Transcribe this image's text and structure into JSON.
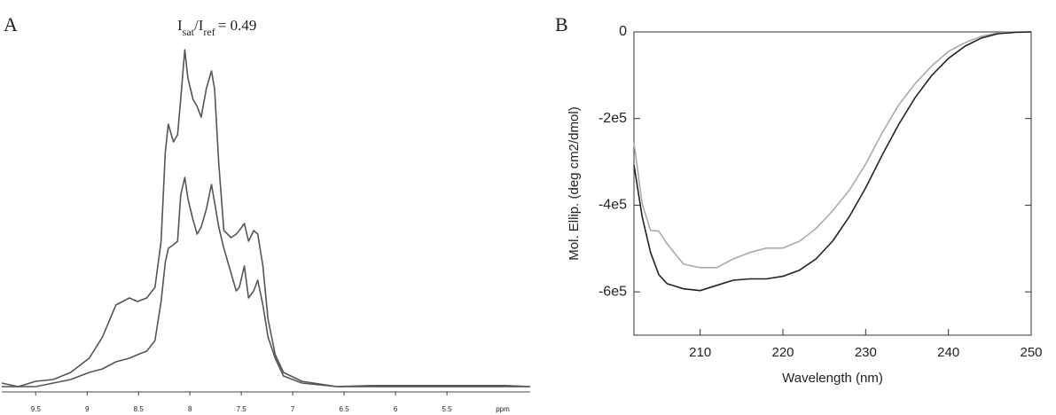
{
  "chart_data": [
    {
      "type": "line",
      "panel": "A",
      "annotation": [
        {
          "text": "I"
        },
        {
          "sub": "sat"
        },
        {
          "text": "/I"
        },
        {
          "sub": "ref"
        },
        {
          "text": "= 0.49"
        }
      ],
      "x_label": "ppm",
      "x": [
        9.83,
        9.67,
        9.5,
        9.33,
        9.16,
        8.98,
        8.85,
        8.72,
        8.59,
        8.51,
        8.42,
        8.34,
        8.28,
        8.24,
        8.21,
        8.16,
        8.12,
        8.09,
        8.05,
        8.02,
        7.97,
        7.93,
        7.89,
        7.84,
        7.79,
        7.76,
        7.72,
        7.67,
        7.6,
        7.55,
        7.52,
        7.47,
        7.43,
        7.38,
        7.34,
        7.29,
        7.24,
        7.17,
        7.09,
        6.91,
        6.57,
        6.22,
        5.53,
        4.93,
        4.69
      ],
      "series": [
        {
          "color": "#555555",
          "values": [
            2,
            1,
            2.5,
            3,
            5,
            9,
            15,
            24,
            26,
            25,
            26,
            29,
            42,
            67,
            75,
            70,
            72,
            82,
            96,
            88,
            82,
            80,
            77,
            85,
            90,
            85,
            64,
            45,
            43,
            44,
            45,
            47,
            42,
            45,
            44,
            35,
            20,
            10,
            5,
            2.5,
            1,
            1.3,
            1.3,
            1.3,
            1
          ]
        },
        {
          "color": "#555555",
          "values": [
            1,
            1,
            1,
            2,
            3,
            5,
            6,
            8,
            9,
            10,
            11,
            14,
            25,
            36,
            40,
            41,
            42,
            55,
            60,
            54,
            48,
            44,
            46,
            51,
            58,
            53,
            46,
            40,
            33,
            28,
            29,
            35,
            26,
            28,
            31,
            24,
            15,
            9,
            4,
            2,
            1,
            1,
            1,
            1,
            1
          ]
        }
      ],
      "xlim": [
        9.83,
        4.69
      ],
      "ylim": [
        0,
        100
      ],
      "xticks": [
        9.5,
        9.0,
        8.5,
        8.0,
        7.5,
        7.0,
        6.5,
        6.0,
        5.5
      ]
    },
    {
      "type": "line",
      "panel": "B",
      "x_label": "Wavelength  (nm)",
      "y_label": "Mol. Ellip. (deg cm2/dmol)",
      "x": [
        202,
        203,
        204,
        205,
        206,
        208,
        210,
        212,
        214,
        216,
        218,
        220,
        222,
        224,
        226,
        228,
        230,
        232,
        234,
        236,
        238,
        240,
        242,
        244,
        246,
        248,
        250
      ],
      "series": [
        {
          "color": "#aaaaaa",
          "values": [
            -255000,
            -397000,
            -458000,
            -460000,
            -489000,
            -536000,
            -544000,
            -544000,
            -524000,
            -509000,
            -499000,
            -499000,
            -483000,
            -454000,
            -413000,
            -366000,
            -305000,
            -233000,
            -168000,
            -119000,
            -78000,
            -45000,
            -25000,
            -10000,
            -2000,
            0,
            0
          ]
        },
        {
          "color": "#222222",
          "values": [
            -307000,
            -427000,
            -509000,
            -560000,
            -581000,
            -593000,
            -597000,
            -585000,
            -573000,
            -570000,
            -570000,
            -564000,
            -550000,
            -524000,
            -483000,
            -427000,
            -360000,
            -284000,
            -213000,
            -151000,
            -100000,
            -61000,
            -33000,
            -14000,
            -4000,
            -1000,
            0
          ]
        }
      ],
      "xlim": [
        202,
        250
      ],
      "ylim": [
        -700000,
        0
      ],
      "xticks": [
        210,
        220,
        230,
        240,
        250
      ],
      "yticks": [
        0,
        {
          "value": -200000,
          "label": "-2e5"
        },
        {
          "value": -400000,
          "label": "-4e5"
        },
        {
          "value": -600000,
          "label": "-6e5"
        }
      ],
      "frame": true
    }
  ]
}
